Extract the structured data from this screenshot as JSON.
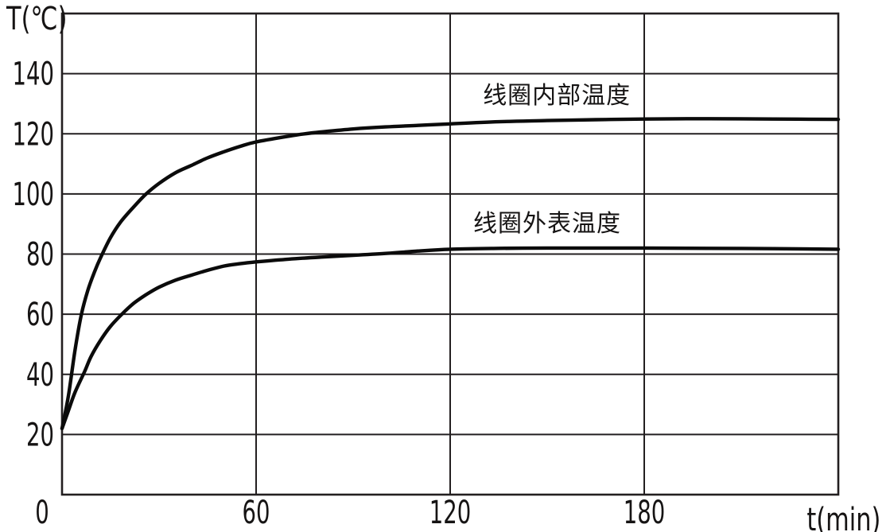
{
  "colors": {
    "background": "#ffffff",
    "ink": "#161414",
    "grid": "#231f20",
    "curve": "#0b0b0b"
  },
  "chart_data": {
    "type": "line",
    "title": "",
    "xlabel": "t(min)",
    "ylabel": "T(℃)",
    "xlim": [
      0,
      240
    ],
    "ylim": [
      0,
      160
    ],
    "x_ticks": [
      0,
      60,
      120,
      180
    ],
    "y_ticks": [
      20,
      40,
      60,
      80,
      100,
      120,
      140
    ],
    "x_gridlines": [
      60,
      120,
      180
    ],
    "y_gridlines": [
      20,
      40,
      60,
      80,
      100,
      120,
      140
    ],
    "grid": true,
    "legend_position": "inline-annotations",
    "series": [
      {
        "name": "线圈内部温度",
        "label_pos": {
          "t": 153,
          "T": 132.5
        },
        "points": [
          [
            0,
            22
          ],
          [
            2,
            33
          ],
          [
            4,
            48
          ],
          [
            6,
            60
          ],
          [
            8,
            68
          ],
          [
            10,
            74
          ],
          [
            12,
            79
          ],
          [
            15,
            85.5
          ],
          [
            18,
            90.5
          ],
          [
            22,
            95.5
          ],
          [
            26,
            100
          ],
          [
            30,
            103.5
          ],
          [
            35,
            107
          ],
          [
            40,
            109.5
          ],
          [
            45,
            112
          ],
          [
            50,
            114
          ],
          [
            55,
            115.8
          ],
          [
            60,
            117.3
          ],
          [
            70,
            119.2
          ],
          [
            75,
            120
          ],
          [
            80,
            120.6
          ],
          [
            90,
            121.6
          ],
          [
            100,
            122.3
          ],
          [
            110,
            122.8
          ],
          [
            120,
            123.3
          ],
          [
            135,
            124
          ],
          [
            150,
            124.4
          ],
          [
            165,
            124.7
          ],
          [
            180,
            124.9
          ],
          [
            200,
            125
          ],
          [
            220,
            124.9
          ],
          [
            240,
            124.8
          ]
        ]
      },
      {
        "name": "线圈外表温度",
        "label_pos": {
          "t": 150,
          "T": 90
        },
        "points": [
          [
            0,
            22
          ],
          [
            2,
            28
          ],
          [
            4,
            34
          ],
          [
            7,
            41
          ],
          [
            9,
            46
          ],
          [
            12,
            51.5
          ],
          [
            15,
            56
          ],
          [
            18.5,
            60
          ],
          [
            22,
            63.5
          ],
          [
            26,
            66.5
          ],
          [
            30,
            69
          ],
          [
            35,
            71.3
          ],
          [
            40,
            73
          ],
          [
            45,
            74.6
          ],
          [
            50,
            76
          ],
          [
            55,
            76.8
          ],
          [
            60,
            77.4
          ],
          [
            70,
            78.3
          ],
          [
            80,
            79
          ],
          [
            90,
            79.6
          ],
          [
            100,
            80.2
          ],
          [
            110,
            81
          ],
          [
            120,
            81.6
          ],
          [
            135,
            81.9
          ],
          [
            150,
            82
          ],
          [
            165,
            82
          ],
          [
            180,
            82
          ],
          [
            200,
            81.9
          ],
          [
            220,
            81.8
          ],
          [
            240,
            81.6
          ]
        ]
      }
    ]
  }
}
